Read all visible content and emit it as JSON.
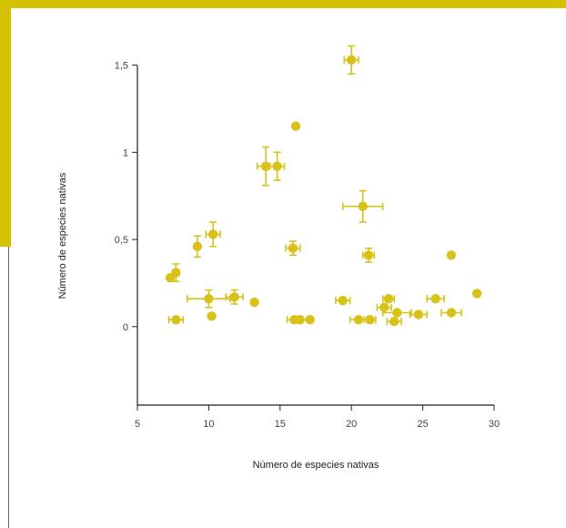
{
  "colors": {
    "accent": "#d4c100",
    "marker": "#d8c21a",
    "axis": "#222222",
    "sideline": "#666666"
  },
  "chart_data": {
    "type": "scatter",
    "title": "",
    "xlabel": "Número de especies nativas",
    "ylabel": "Número de especies nativas",
    "xlim": [
      5,
      30
    ],
    "ylim": [
      -0.45,
      1.55
    ],
    "xticks": [
      5,
      10,
      15,
      20,
      25,
      30
    ],
    "yticks": [
      0,
      0.5,
      1,
      1.5
    ],
    "xtick_labels": [
      "5",
      "10",
      "15",
      "20",
      "25",
      "30"
    ],
    "ytick_labels": [
      "0",
      "0,5",
      "1",
      "1,5"
    ],
    "grid": false,
    "legend": "none",
    "points": [
      {
        "x": 20.0,
        "y": 1.53,
        "xerr": 0.5,
        "yerr": 0.08
      },
      {
        "x": 16.1,
        "y": 1.15
      },
      {
        "x": 14.0,
        "y": 0.92,
        "xerr": 0.6,
        "yerr": 0.11
      },
      {
        "x": 14.8,
        "y": 0.92,
        "xerr": 0.5,
        "yerr": 0.08
      },
      {
        "x": 20.8,
        "y": 0.69,
        "xerr": 1.4,
        "yerr": 0.09
      },
      {
        "x": 10.3,
        "y": 0.53,
        "xerr": 0.5,
        "yerr": 0.07
      },
      {
        "x": 9.2,
        "y": 0.46,
        "yerr": 0.06
      },
      {
        "x": 15.9,
        "y": 0.45,
        "xerr": 0.5,
        "yerr": 0.04
      },
      {
        "x": 21.2,
        "y": 0.41,
        "xerr": 0.4,
        "yerr": 0.04
      },
      {
        "x": 27.0,
        "y": 0.41
      },
      {
        "x": 7.3,
        "y": 0.28
      },
      {
        "x": 7.7,
        "y": 0.31,
        "yerr": 0.05
      },
      {
        "x": 28.8,
        "y": 0.19
      },
      {
        "x": 10.0,
        "y": 0.16,
        "xerr": 1.5,
        "yerr": 0.05
      },
      {
        "x": 11.8,
        "y": 0.17,
        "xerr": 0.6,
        "yerr": 0.04
      },
      {
        "x": 13.2,
        "y": 0.14
      },
      {
        "x": 19.4,
        "y": 0.15,
        "xerr": 0.5
      },
      {
        "x": 22.6,
        "y": 0.16,
        "xerr": 0.4
      },
      {
        "x": 25.9,
        "y": 0.16,
        "xerr": 0.6
      },
      {
        "x": 22.3,
        "y": 0.11,
        "xerr": 0.5
      },
      {
        "x": 23.2,
        "y": 0.08,
        "xerr": 1.0
      },
      {
        "x": 24.7,
        "y": 0.07,
        "xerr": 0.6
      },
      {
        "x": 27.0,
        "y": 0.08,
        "xerr": 0.7
      },
      {
        "x": 10.2,
        "y": 0.06
      },
      {
        "x": 7.7,
        "y": 0.04,
        "xerr": 0.5
      },
      {
        "x": 16.0,
        "y": 0.04,
        "xerr": 0.5
      },
      {
        "x": 16.4,
        "y": 0.04,
        "xerr": 0.6
      },
      {
        "x": 17.1,
        "y": 0.04
      },
      {
        "x": 20.5,
        "y": 0.04,
        "xerr": 0.6
      },
      {
        "x": 21.3,
        "y": 0.04,
        "xerr": 0.4
      },
      {
        "x": 23.0,
        "y": 0.03,
        "xerr": 0.5
      }
    ]
  }
}
